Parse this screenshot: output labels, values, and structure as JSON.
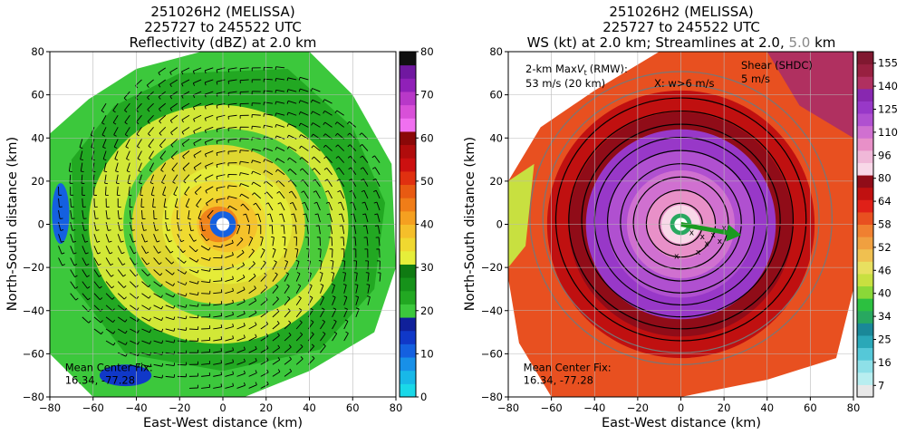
{
  "chart_data": [
    {
      "type": "heatmap",
      "title_lines": [
        "251026H2 (MELISSA)",
        "225727 to 245522 UTC",
        "Reflectivity (dBZ) at 2.0 km"
      ],
      "xlabel": "East-West distance (km)",
      "ylabel": "North-South distance (km)",
      "xlim": [
        -80,
        80
      ],
      "ylim": [
        -80,
        80
      ],
      "xticks": [
        -80,
        -60,
        -40,
        -20,
        0,
        20,
        40,
        60,
        80
      ],
      "yticks": [
        -80,
        -60,
        -40,
        -20,
        0,
        20,
        40,
        60,
        80
      ],
      "grid": true,
      "colorbar": {
        "ticks": [
          0,
          10,
          20,
          30,
          40,
          50,
          60,
          70,
          80
        ],
        "colors": [
          "#1ad8e8",
          "#18b8e8",
          "#1890e8",
          "#1460e0",
          "#1038c8",
          "#10209a",
          "#3cc83c",
          "#22a822",
          "#16921a",
          "#0f7a12",
          "#e6ee3a",
          "#f0d830",
          "#f5bf2a",
          "#f5a020",
          "#f07d18",
          "#e85a12",
          "#e03010",
          "#cc1010",
          "#b00c0c",
          "#8a0808",
          "#f070f0",
          "#d850d8",
          "#b838c8",
          "#9020b8",
          "#7018a0",
          "#101010"
        ]
      },
      "eye_center": [
        0,
        0
      ],
      "annotations": [
        {
          "text": "Mean Center Fix:",
          "x": -73,
          "y": -68
        },
        {
          "text": "16.34, -77.28",
          "x": -73,
          "y": -74
        }
      ]
    },
    {
      "type": "heatmap",
      "title_lines": [
        "251026H2 (MELISSA)",
        "225727 to 245522 UTC",
        "WS (kt) at 2.0 km; Streamlines at 2.0, ",
        "5.0",
        " km"
      ],
      "xlabel": "East-West distance (km)",
      "ylabel": "North-South distance (km)",
      "xlim": [
        -80,
        80
      ],
      "ylim": [
        -80,
        80
      ],
      "xticks": [
        -80,
        -60,
        -40,
        -20,
        0,
        20,
        40,
        60,
        80
      ],
      "yticks": [
        -80,
        -60,
        -40,
        -20,
        0,
        20,
        40,
        60,
        80
      ],
      "grid": true,
      "colorbar": {
        "ticks": [
          7,
          16,
          25,
          34,
          40,
          46,
          52,
          58,
          64,
          80,
          96,
          110,
          125,
          140,
          155
        ],
        "colors": [
          "#e8e8e8",
          "#b8eef0",
          "#8ee0e8",
          "#55c8d8",
          "#2aa8b8",
          "#1a8898",
          "#28a860",
          "#2cc040",
          "#8ad838",
          "#c8e040",
          "#e8e060",
          "#f0c050",
          "#f0a040",
          "#f08030",
          "#e85020",
          "#e02018",
          "#c01010",
          "#900c18",
          "#f8d8e8",
          "#f0b8d8",
          "#e890c8",
          "#d070d0",
          "#b050d0",
          "#9838c8",
          "#8828b0",
          "#b03060",
          "#982040",
          "#801830"
        ]
      },
      "rmw_text": "2-km Max",
      "rmw_value": "53 m/s (20 km)",
      "rmw_units": "(RMW):",
      "xw_label": "X: w>6 m/s",
      "shear_label": "Shear (SHDC)",
      "shear_value": "5 m/s",
      "annotations": [
        {
          "text": "Mean Center Fix:",
          "x": -73,
          "y": -68
        },
        {
          "text": "16.34, -77.28",
          "x": -73,
          "y": -74
        }
      ]
    }
  ]
}
